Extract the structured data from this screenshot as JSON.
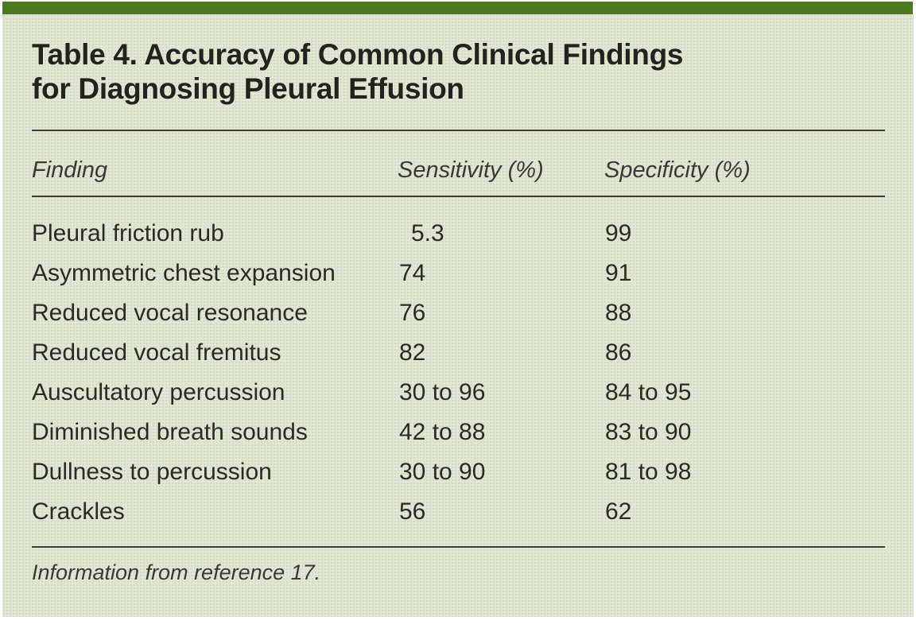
{
  "page": {
    "colors": {
      "page_bg": "#ffffff",
      "accent": "#4d7a21",
      "panel": "#e2e7d3",
      "panel_dot": "#ccd6b9",
      "rule": "#3b3a33",
      "divider": "#70706a",
      "title": "#23221e",
      "text": "#2b2a25",
      "muted": "#3a3933"
    }
  },
  "table": {
    "title_line1": "Table 4. Accuracy of Common Clinical Findings",
    "title_line2": "for Diagnosing Pleural Effusion",
    "columns": [
      "Finding",
      "Sensitivity (%)",
      "Specificity (%)"
    ],
    "rows": [
      {
        "finding": "Pleural friction rub",
        "sensitivity": "5.3",
        "specificity": "99",
        "sensitivity_indent": true
      },
      {
        "finding": "Asymmetric chest expansion",
        "sensitivity": "74",
        "specificity": "91"
      },
      {
        "finding": "Reduced vocal resonance",
        "sensitivity": "76",
        "specificity": "88"
      },
      {
        "finding": "Reduced vocal fremitus",
        "sensitivity": "82",
        "specificity": "86"
      },
      {
        "finding": "Auscultatory percussion",
        "sensitivity": "30 to 96",
        "specificity": "84 to 95"
      },
      {
        "finding": "Diminished breath sounds",
        "sensitivity": "42 to 88",
        "specificity": "83 to 90"
      },
      {
        "finding": "Dullness to percussion",
        "sensitivity": "30 to 90",
        "specificity": "81 to 98"
      },
      {
        "finding": "Crackles",
        "sensitivity": "56",
        "specificity": "62"
      }
    ],
    "footnote": "Information from reference 17."
  }
}
